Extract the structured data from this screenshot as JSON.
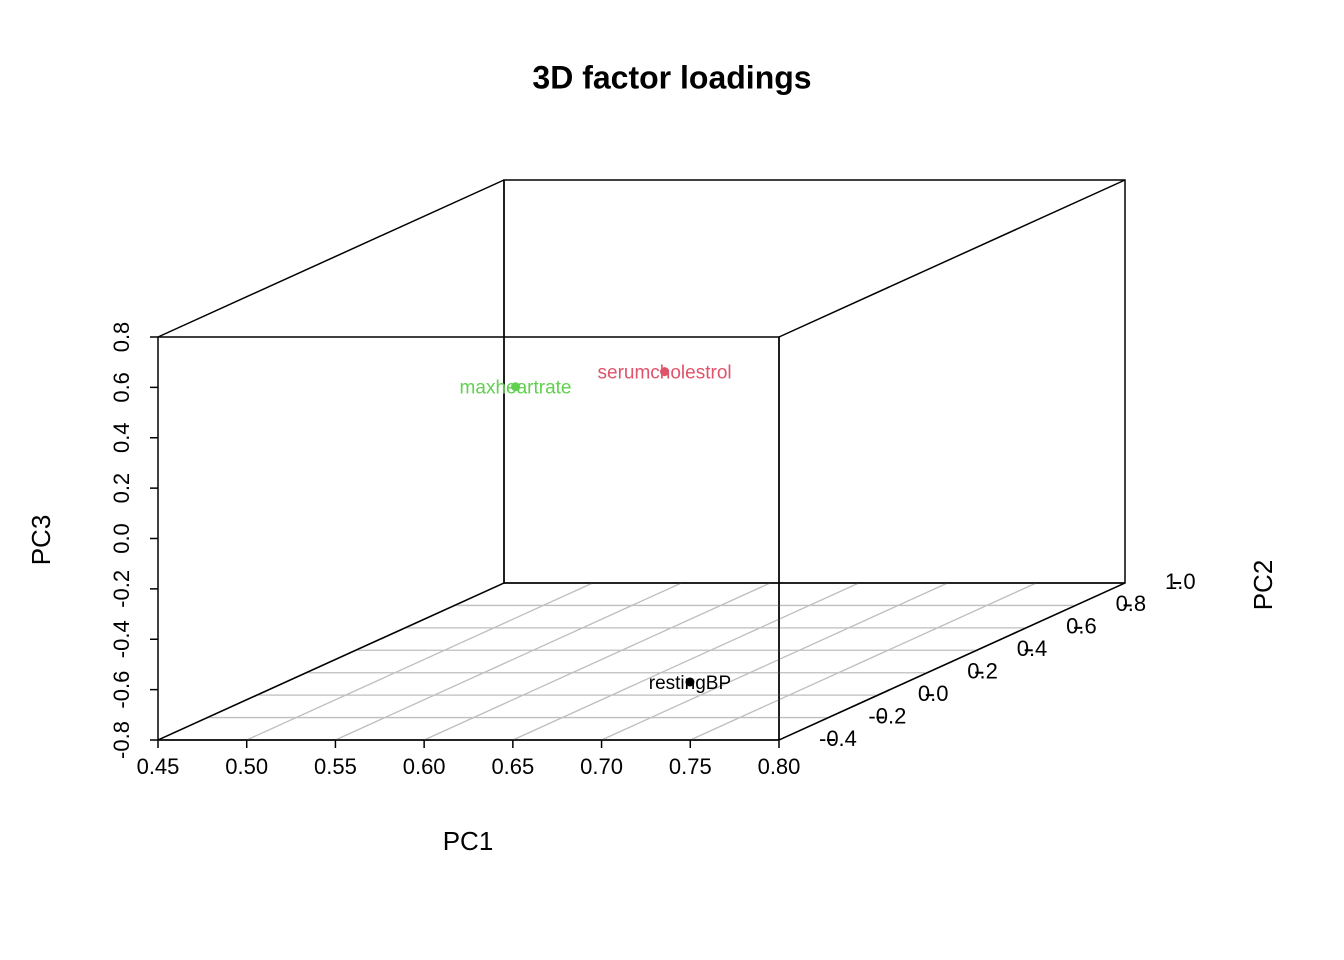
{
  "chart_data": {
    "type": "scatter3d",
    "title": "3D factor loadings",
    "x_label": "PC1",
    "y_label": "PC2",
    "z_label": "PC3",
    "xlim": [
      0.45,
      0.8
    ],
    "ylim": [
      -0.4,
      1.0
    ],
    "zlim": [
      -0.8,
      0.8
    ],
    "xticks": [
      0.45,
      {
        "value": 0.5,
        "label": "0.50"
      },
      0.55,
      {
        "value": 0.6,
        "label": "0.60"
      },
      0.65,
      {
        "value": 0.7,
        "label": "0.70"
      },
      0.75,
      {
        "value": 0.8,
        "label": "0.80"
      }
    ],
    "yticks": [
      -0.4,
      -0.2,
      {
        "value": 0,
        "label": "0.0"
      },
      0.2,
      0.4,
      0.6,
      0.8,
      {
        "value": 1,
        "label": "1.0"
      }
    ],
    "zticks": [
      -0.8,
      -0.6,
      -0.4,
      -0.2,
      {
        "value": 0,
        "label": "0.0"
      },
      0.2,
      0.4,
      0.6,
      0.8
    ],
    "grid": true,
    "points": [
      {
        "label": "restingBP",
        "color": "#000000",
        "x": 0.709,
        "y": -0.107,
        "z": -0.7
      },
      {
        "label": "serumcholestrol",
        "color": "#DF536B",
        "x": 0.638,
        "y": 0.3,
        "z": 0.351
      },
      {
        "label": "maxheartrate",
        "color": "#61D04F",
        "x": 0.554,
        "y": 0.3,
        "z": 0.291
      }
    ]
  }
}
